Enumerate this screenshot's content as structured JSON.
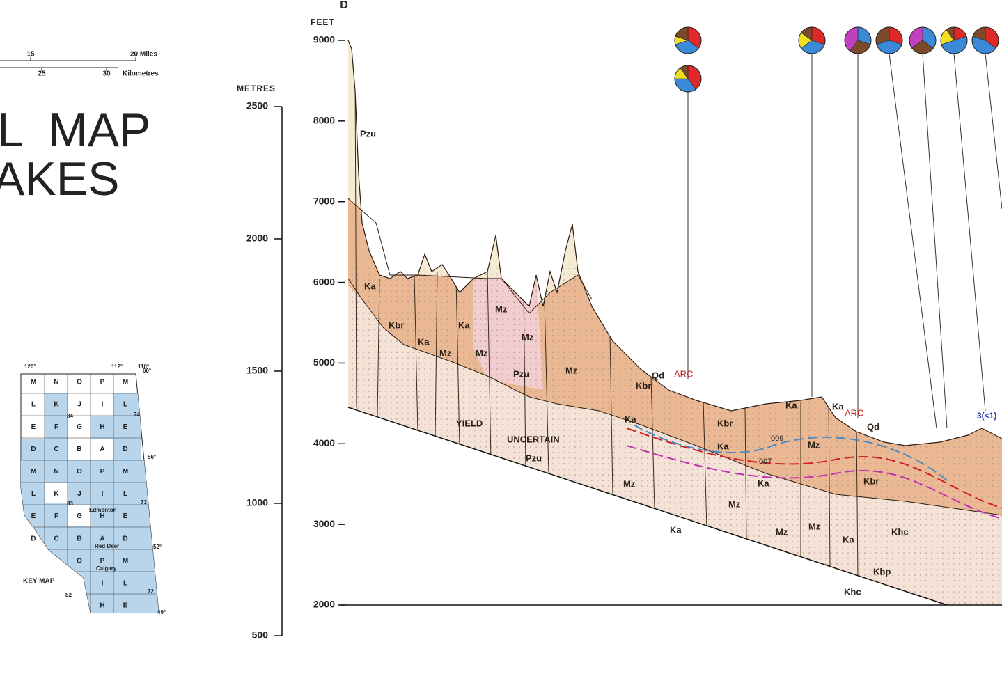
{
  "scale_bar": {
    "miles": [
      "15",
      "20 Miles"
    ],
    "kilometres": [
      "25",
      "30",
      "Kilometres"
    ]
  },
  "title": [
    "L  MAP",
    "AKES"
  ],
  "key_map": {
    "label": "KEY MAP",
    "grid": [
      [
        "M",
        "N",
        "O",
        "P",
        "M"
      ],
      [
        "L",
        "K",
        "J",
        "I",
        "L"
      ],
      [
        "E",
        "F",
        "G",
        "H",
        "E"
      ],
      [
        "D",
        "C",
        "B",
        "A",
        "D"
      ],
      [
        "M",
        "N",
        "O",
        "P",
        "M"
      ],
      [
        "L",
        "K",
        "J",
        "I",
        "L"
      ],
      [
        "E",
        "F",
        "G",
        "H",
        "E"
      ],
      [
        "D",
        "C",
        "B",
        "A",
        "D"
      ],
      [
        null,
        null,
        "O",
        "P",
        "M"
      ],
      [
        null,
        null,
        null,
        "I",
        "L"
      ],
      [
        null,
        null,
        null,
        "H",
        "E"
      ]
    ],
    "longitudes": [
      "120°",
      "112°",
      "110°"
    ],
    "latitudes": [
      "60°",
      "56°",
      "52°",
      "49°"
    ],
    "sheet_numbers": [
      "84",
      "74",
      "83",
      "73",
      "82",
      "72"
    ],
    "cities": [
      "Edmonton",
      "Red Deer",
      "Calgary"
    ]
  },
  "section": {
    "letter": "D",
    "feet_label": "FEET",
    "feet_ticks": [
      9000,
      8000,
      7000,
      6000,
      5000,
      4000,
      3000,
      2000
    ],
    "metres_label": "METRES",
    "metres_ticks": [
      2500,
      2000,
      1500,
      1000,
      500
    ],
    "units": [
      "Pzu",
      "Ka",
      "Kbr",
      "Ka",
      "Ka",
      "Mz",
      "Mz",
      "Mz",
      "Mz",
      "Pzu",
      "Mz",
      "YIELD",
      "UNCERTAIN",
      "Pzu",
      "Qd",
      "Kbr",
      "Ka",
      "Kbr",
      "Ka",
      "Mz",
      "Ka",
      "Mz",
      "Mz",
      "Mz",
      "Ka",
      "Ka",
      "Ka",
      "Mz",
      "Kbr",
      "Ka",
      "Qd",
      "Khc",
      "Kbp",
      "Khc"
    ],
    "sites": [
      "ARC",
      "ARC"
    ],
    "depth_note": "3(<1)",
    "contours": [
      "009",
      "007"
    ]
  }
}
